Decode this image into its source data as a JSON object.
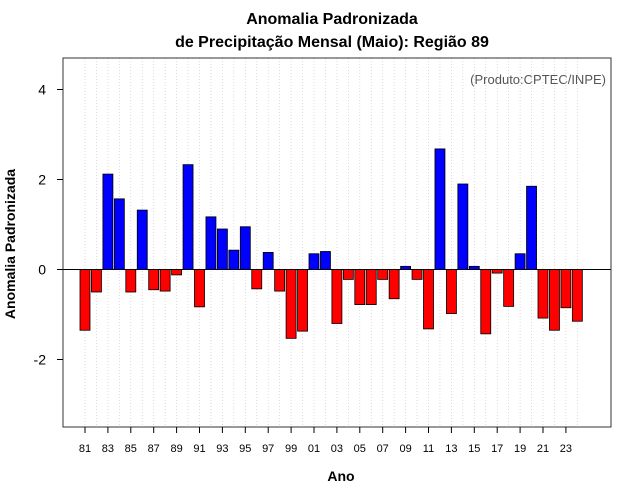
{
  "chart_data": {
    "type": "bar",
    "title": "Anomalia Padronizada",
    "subtitle": "de Precipitação Mensal (Maio): Região 89",
    "xlabel": "Ano",
    "ylabel": "Anomalia Padronizada",
    "credit": "(Produto:CPTEC/INPE)",
    "ylim": [
      -3.5,
      4.7
    ],
    "yticks": [
      -2,
      0,
      2,
      4
    ],
    "xtick_labels": [
      "81",
      "83",
      "85",
      "87",
      "89",
      "91",
      "93",
      "95",
      "97",
      "99",
      "01",
      "03",
      "05",
      "07",
      "09",
      "11",
      "13",
      "15",
      "17",
      "19",
      "21",
      "23"
    ],
    "categories": [
      "1981",
      "1982",
      "1983",
      "1984",
      "1985",
      "1986",
      "1987",
      "1988",
      "1989",
      "1990",
      "1991",
      "1992",
      "1993",
      "1994",
      "1995",
      "1996",
      "1997",
      "1998",
      "1999",
      "2000",
      "2001",
      "2002",
      "2003",
      "2004",
      "2005",
      "2006",
      "2007",
      "2008",
      "2009",
      "2010",
      "2011",
      "2012",
      "2013",
      "2014",
      "2015",
      "2016",
      "2017",
      "2018",
      "2019",
      "2020",
      "2021",
      "2022",
      "2023",
      "2024"
    ],
    "values": [
      -1.35,
      -0.5,
      2.12,
      1.57,
      -0.5,
      1.32,
      -0.45,
      -0.48,
      -0.12,
      2.33,
      -0.83,
      1.17,
      0.9,
      0.43,
      0.95,
      -0.43,
      0.38,
      -0.48,
      -1.53,
      -1.37,
      0.35,
      0.4,
      -1.2,
      -0.22,
      -0.78,
      -0.78,
      -0.22,
      -0.65,
      0.07,
      -0.22,
      -1.32,
      2.68,
      -0.98,
      1.9,
      0.07,
      -1.43,
      -0.08,
      -0.82,
      0.35,
      1.85,
      -1.08,
      -1.35,
      -0.85,
      -1.15
    ],
    "colors": {
      "positive": "#0000ff",
      "negative": "#ff0000",
      "bar_edge": "#000000",
      "grid": "#cccccc",
      "frame": "#333333"
    },
    "grid": true
  }
}
